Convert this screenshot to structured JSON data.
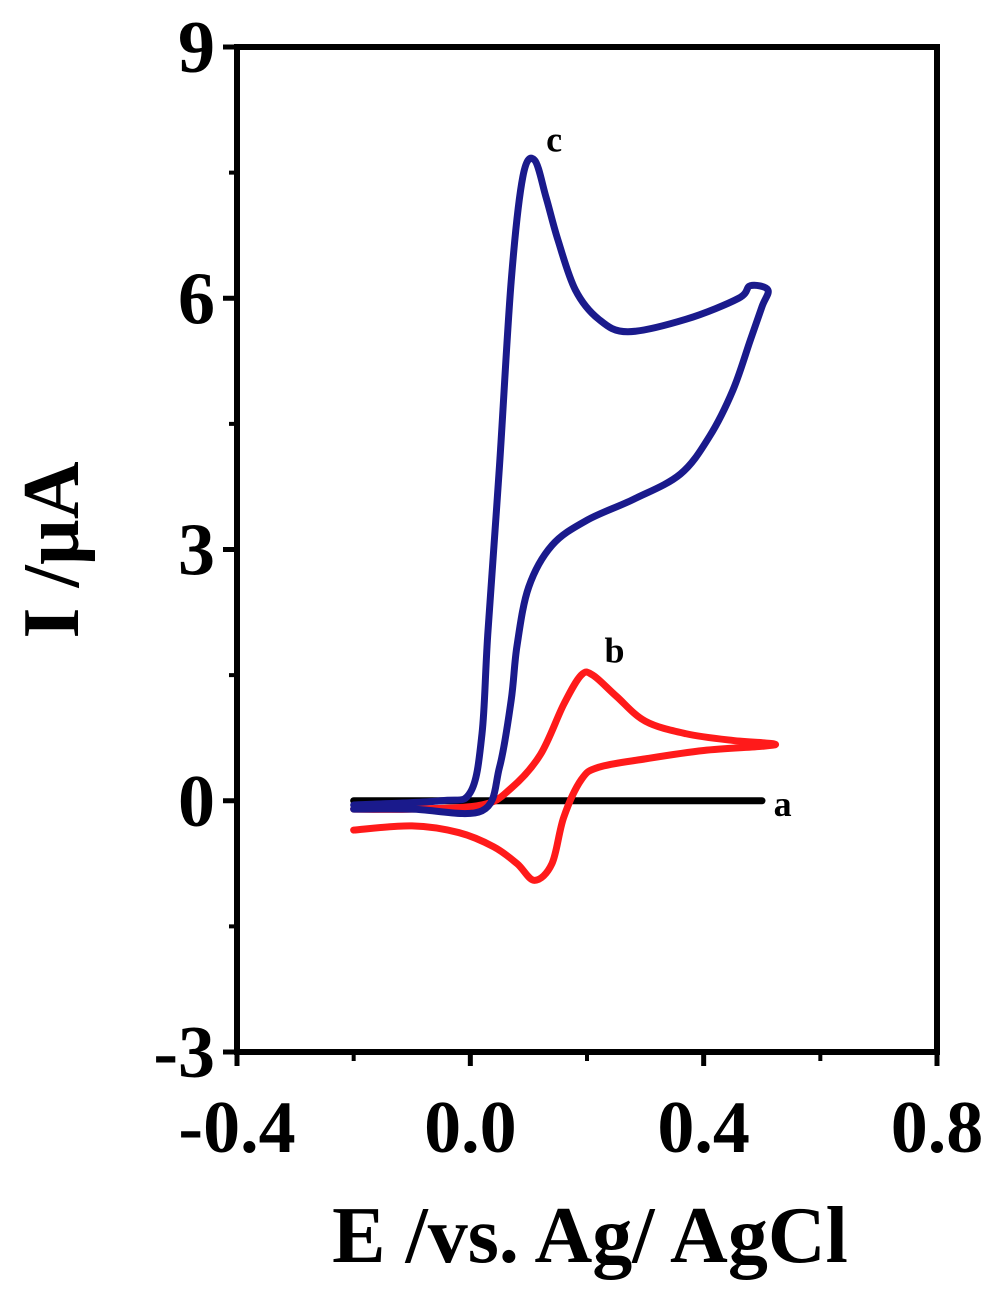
{
  "chart_data": {
    "type": "line",
    "xlabel": "E /vs. Ag/ AgCl",
    "ylabel": "I /µA",
    "xlim": [
      -0.4,
      0.8
    ],
    "ylim": [
      -3,
      9
    ],
    "xticks": [
      "-0.4",
      "0.0",
      "0.4",
      "0.8"
    ],
    "yticks": [
      "-3",
      "0",
      "3",
      "6",
      "9"
    ],
    "grid": false,
    "series": [
      {
        "name": "a",
        "color": "#000000",
        "points": [
          [
            -0.2,
            0.0
          ],
          [
            0.5,
            0.0
          ]
        ]
      },
      {
        "name": "b",
        "color": "#ff1a1a",
        "points": [
          [
            -0.2,
            -0.35
          ],
          [
            -0.1,
            -0.3
          ],
          [
            -0.02,
            -0.38
          ],
          [
            0.04,
            -0.55
          ],
          [
            0.08,
            -0.75
          ],
          [
            0.11,
            -0.95
          ],
          [
            0.14,
            -0.75
          ],
          [
            0.16,
            -0.2
          ],
          [
            0.19,
            0.25
          ],
          [
            0.22,
            0.4
          ],
          [
            0.3,
            0.5
          ],
          [
            0.4,
            0.6
          ],
          [
            0.5,
            0.65
          ],
          [
            0.52,
            0.68
          ],
          [
            0.45,
            0.72
          ],
          [
            0.37,
            0.8
          ],
          [
            0.3,
            0.95
          ],
          [
            0.25,
            1.25
          ],
          [
            0.21,
            1.5
          ],
          [
            0.19,
            1.5
          ],
          [
            0.16,
            1.15
          ],
          [
            0.12,
            0.55
          ],
          [
            0.07,
            0.15
          ],
          [
            0.02,
            -0.05
          ],
          [
            -0.1,
            -0.1
          ],
          [
            -0.2,
            -0.1
          ]
        ]
      },
      {
        "name": "c",
        "color": "#1a1a8c",
        "points": [
          [
            -0.2,
            -0.1
          ],
          [
            -0.1,
            -0.1
          ],
          [
            0.02,
            -0.12
          ],
          [
            0.05,
            0.4
          ],
          [
            0.07,
            1.2
          ],
          [
            0.08,
            1.85
          ],
          [
            0.1,
            2.55
          ],
          [
            0.14,
            3.05
          ],
          [
            0.2,
            3.35
          ],
          [
            0.28,
            3.6
          ],
          [
            0.36,
            3.9
          ],
          [
            0.41,
            4.35
          ],
          [
            0.45,
            4.9
          ],
          [
            0.48,
            5.5
          ],
          [
            0.5,
            5.9
          ],
          [
            0.51,
            6.1
          ],
          [
            0.48,
            6.15
          ],
          [
            0.46,
            6.0
          ],
          [
            0.37,
            5.75
          ],
          [
            0.27,
            5.6
          ],
          [
            0.22,
            5.75
          ],
          [
            0.18,
            6.1
          ],
          [
            0.15,
            6.7
          ],
          [
            0.13,
            7.2
          ],
          [
            0.11,
            7.65
          ],
          [
            0.09,
            7.45
          ],
          [
            0.07,
            6.2
          ],
          [
            0.05,
            4.0
          ],
          [
            0.03,
            2.0
          ],
          [
            0.02,
            0.8
          ],
          [
            0.0,
            0.1
          ],
          [
            -0.05,
            0.0
          ],
          [
            -0.2,
            -0.05
          ]
        ]
      }
    ],
    "annotations": [
      {
        "text": "a",
        "x": 0.52,
        "y": -0.18
      },
      {
        "text": "b",
        "x": 0.23,
        "y": 1.65
      },
      {
        "text": "c",
        "x": 0.13,
        "y": 7.75
      }
    ]
  }
}
